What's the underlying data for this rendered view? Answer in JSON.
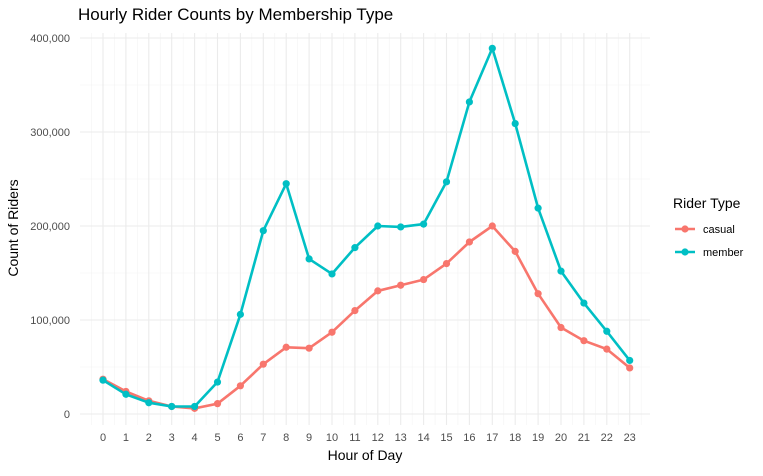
{
  "chart_data": {
    "type": "line",
    "title": "Hourly Rider Counts by Membership Type",
    "xlabel": "Hour of Day",
    "ylabel": "Count of Riders",
    "categories": [
      "0",
      "1",
      "2",
      "3",
      "4",
      "5",
      "6",
      "7",
      "8",
      "9",
      "10",
      "11",
      "12",
      "13",
      "14",
      "15",
      "16",
      "17",
      "18",
      "19",
      "20",
      "21",
      "22",
      "23"
    ],
    "ylim": [
      0,
      400000
    ],
    "y_ticks": [
      0,
      100000,
      200000,
      300000,
      400000
    ],
    "y_tick_labels": [
      "0",
      "100,000",
      "200,000",
      "300,000",
      "400,000"
    ],
    "grid": true,
    "legend": {
      "title": "Rider Type",
      "position": "right"
    },
    "series": [
      {
        "name": "casual",
        "color": "#F8766D",
        "values": [
          37000,
          24000,
          14000,
          8000,
          6000,
          11000,
          30000,
          53000,
          71000,
          70000,
          87000,
          110000,
          131000,
          137000,
          143000,
          160000,
          183000,
          200000,
          173000,
          128000,
          92000,
          78000,
          69000,
          49000
        ]
      },
      {
        "name": "member",
        "color": "#00BFC4",
        "values": [
          36000,
          21000,
          12000,
          8000,
          8000,
          34000,
          106000,
          195000,
          245000,
          165000,
          149000,
          177000,
          200000,
          199000,
          202000,
          247000,
          332000,
          389000,
          309000,
          219000,
          152000,
          118000,
          88000,
          57000
        ]
      }
    ]
  }
}
